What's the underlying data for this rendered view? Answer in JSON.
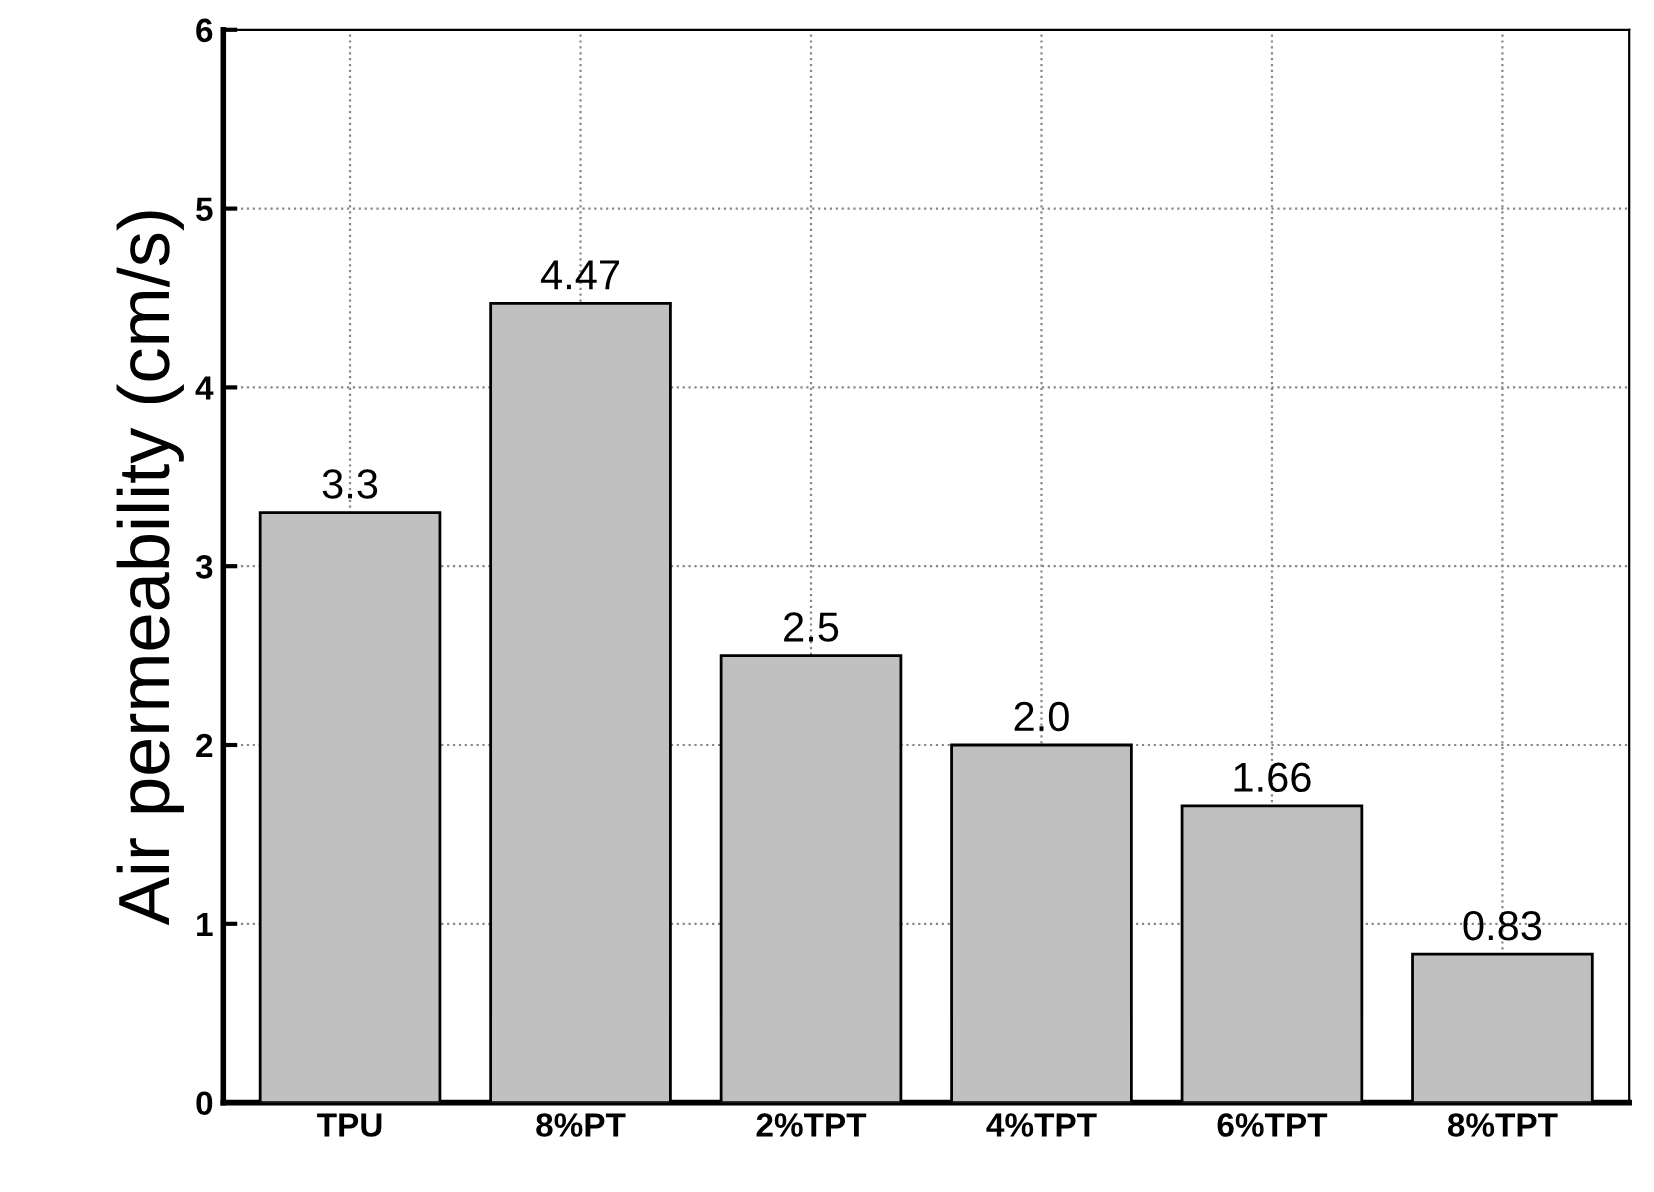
{
  "chart_data": {
    "type": "bar",
    "ylabel": "Air permeability (cm/s)",
    "categories": [
      "TPU",
      "8%PT",
      "2%TPT",
      "4%TPT",
      "6%TPT",
      "8%TPT"
    ],
    "values": [
      3.3,
      4.47,
      2.5,
      2.0,
      1.66,
      0.83
    ],
    "value_labels": [
      "3.3",
      "4.47",
      "2.5",
      "2.0",
      "1.66",
      "0.83"
    ],
    "color": "#c0c0c0",
    "ylim": [
      0,
      6
    ],
    "yticks": [
      0,
      1,
      2,
      3,
      4,
      5,
      6
    ],
    "grid": true
  }
}
